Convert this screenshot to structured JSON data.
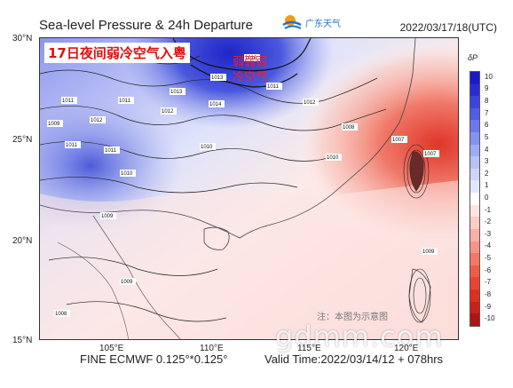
{
  "header": {
    "title": "Sea-level Pressure & 24h Departure",
    "datetime": "2022/03/17/18(UTC)",
    "logo_text": "广东天气"
  },
  "map": {
    "annotation_box": "17日夜间弱冷空气入粤",
    "red_note": "弱弱弱\n冷空气",
    "note_bottom_right": "注：本图为示意图",
    "watermark": "gdmm.com",
    "lat_labels": [
      "30°N",
      "25°N",
      "20°N",
      "15°N"
    ],
    "lon_labels": [
      "105°E",
      "110°E",
      "115°E",
      "120°E"
    ],
    "contour_labels": [
      "1011",
      "1009",
      "1011",
      "1012",
      "1013",
      "1011",
      "1012",
      "1013",
      "1014",
      "1012",
      "1010",
      "1011",
      "1011",
      "1010",
      "1009",
      "1008",
      "1007",
      "1007",
      "1008",
      "1010",
      "1013",
      "1009",
      "1009"
    ]
  },
  "colorbar": {
    "title": "δP",
    "labels": [
      "10",
      "9",
      "8",
      "7",
      "6",
      "5",
      "4",
      "3",
      "2",
      "1",
      "0",
      "-1",
      "-2",
      "-3",
      "-4",
      "-5",
      "-6",
      "-7",
      "-8",
      "-9",
      "-10"
    ],
    "colors": [
      "#1a1acc",
      "#2b2bd6",
      "#3c44e0",
      "#4f5ee6",
      "#6a78ea",
      "#8593ee",
      "#9fabf2",
      "#b8c2f6",
      "#cdd6f9",
      "#e1e7fc",
      "#ffffff",
      "#fde4e0",
      "#fbcbc4",
      "#f9b0a6",
      "#f69487",
      "#f37866",
      "#ef5c49",
      "#eb4430",
      "#e02e20",
      "#c9201a",
      "#b01414"
    ]
  },
  "footer": {
    "model": "FINE ECMWF 0.125°*0.125°",
    "valid": "Valid Time:2022/03/14/12 + 078hrs"
  }
}
